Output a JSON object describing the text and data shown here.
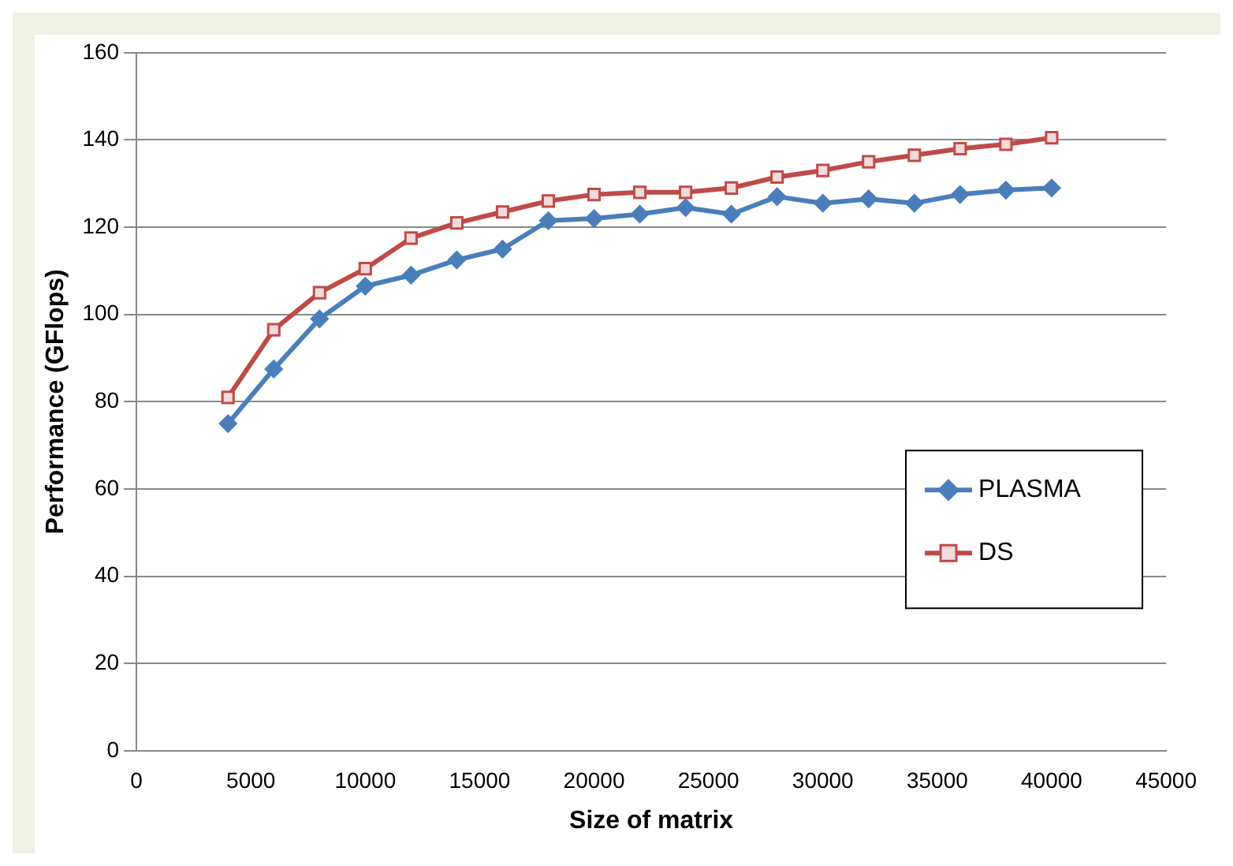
{
  "chart_data": {
    "type": "line",
    "xlabel": "Size of matrix",
    "ylabel": "Performance (GFlops)",
    "x": [
      4000,
      6000,
      8000,
      10000,
      12000,
      14000,
      16000,
      18000,
      20000,
      22000,
      24000,
      26000,
      28000,
      30000,
      32000,
      34000,
      36000,
      38000,
      40000
    ],
    "series": [
      {
        "name": "PLASMA",
        "color": "#4a7ebb",
        "marker": "diamond",
        "values": [
          75,
          87.5,
          99,
          106.5,
          109,
          112.5,
          115,
          121.5,
          122,
          123,
          124.5,
          123,
          127,
          125.5,
          126.5,
          125.5,
          127.5,
          128.5,
          129
        ]
      },
      {
        "name": "DS",
        "color": "#be4b48",
        "marker": "square",
        "values": [
          81,
          96.5,
          105,
          110.5,
          117.5,
          121,
          123.5,
          126,
          127.5,
          128,
          128,
          129,
          131.5,
          133,
          135,
          136.5,
          138,
          139,
          140.5
        ]
      }
    ],
    "xlim": [
      0,
      45000
    ],
    "xticks": [
      0,
      5000,
      10000,
      15000,
      20000,
      25000,
      30000,
      35000,
      40000,
      45000
    ],
    "ylim": [
      0,
      160
    ],
    "yticks": [
      0,
      20,
      40,
      60,
      80,
      100,
      120,
      140,
      160
    ],
    "grid": "y",
    "legend": "right",
    "line_style": "solid"
  }
}
